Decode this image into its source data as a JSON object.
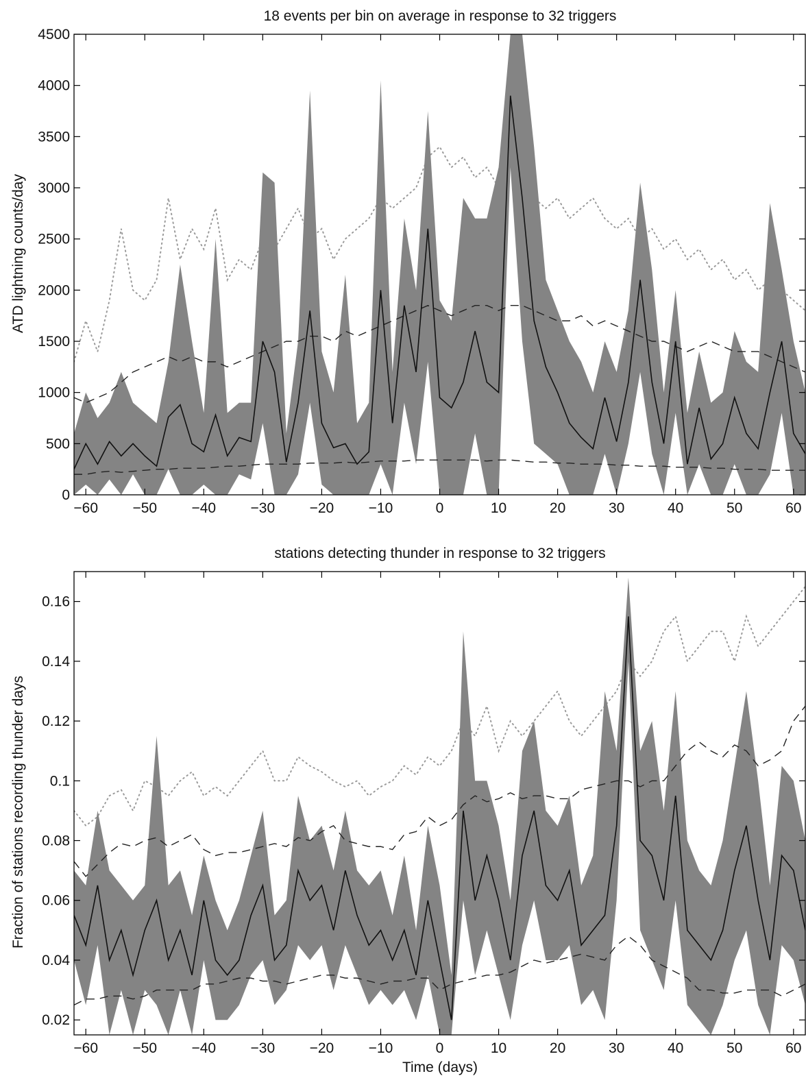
{
  "chart_data": [
    {
      "type": "line",
      "title": "18 events per bin on average in response to 32 triggers",
      "xlabel": "",
      "ylabel": "ATD lightning counts/day",
      "xlim": [
        -62,
        62
      ],
      "ylim": [
        0,
        4500
      ],
      "xticks": [
        -60,
        -50,
        -40,
        -30,
        -20,
        -10,
        0,
        10,
        20,
        30,
        40,
        50,
        60
      ],
      "yticks": [
        0,
        500,
        1000,
        1500,
        2000,
        2500,
        3000,
        3500,
        4000,
        4500
      ],
      "grid": false,
      "x": [
        -62,
        -60,
        -58,
        -56,
        -54,
        -52,
        -50,
        -48,
        -46,
        -44,
        -42,
        -40,
        -38,
        -36,
        -34,
        -32,
        -30,
        -28,
        -26,
        -24,
        -22,
        -20,
        -18,
        -16,
        -14,
        -12,
        -10,
        -8,
        -6,
        -4,
        -2,
        0,
        2,
        4,
        6,
        8,
        10,
        12,
        14,
        16,
        18,
        20,
        22,
        24,
        26,
        28,
        30,
        32,
        34,
        36,
        38,
        40,
        42,
        44,
        46,
        48,
        50,
        52,
        54,
        56,
        58,
        60,
        62
      ],
      "series": [
        {
          "role": "mean",
          "style": "solid",
          "values": [
            250,
            500,
            300,
            520,
            380,
            500,
            380,
            280,
            760,
            880,
            500,
            420,
            780,
            380,
            560,
            520,
            1500,
            1200,
            320,
            900,
            1800,
            700,
            460,
            500,
            300,
            420,
            2000,
            700,
            1850,
            1200,
            2600,
            950,
            850,
            1100,
            1600,
            1100,
            1000,
            3900,
            2900,
            1700,
            1250,
            1000,
            700,
            560,
            450,
            950,
            520,
            1100,
            2100,
            1100,
            500,
            1500,
            300,
            850,
            350,
            500,
            950,
            600,
            450,
            1000,
            1500,
            600,
            400
          ]
        },
        {
          "role": "band_upper",
          "style": "fill",
          "values": [
            600,
            1000,
            750,
            900,
            1200,
            900,
            800,
            700,
            1300,
            2250,
            1500,
            800,
            2500,
            800,
            900,
            900,
            3150,
            3050,
            600,
            1500,
            3950,
            1400,
            1000,
            2150,
            700,
            900,
            4050,
            1200,
            2700,
            2000,
            3750,
            1900,
            1700,
            2900,
            2700,
            2700,
            3200,
            4500,
            4500,
            3400,
            2100,
            1800,
            1500,
            1300,
            1000,
            1500,
            1200,
            1800,
            3050,
            2200,
            1000,
            2000,
            800,
            1400,
            900,
            1000,
            1600,
            1300,
            1200,
            2850,
            2200,
            1500,
            1000
          ]
        },
        {
          "role": "band_lower",
          "style": "fill",
          "values": [
            0,
            100,
            0,
            150,
            0,
            200,
            0,
            0,
            250,
            0,
            0,
            100,
            0,
            0,
            200,
            150,
            700,
            0,
            0,
            200,
            900,
            100,
            0,
            0,
            0,
            0,
            300,
            0,
            900,
            300,
            1300,
            0,
            0,
            0,
            600,
            0,
            0,
            3200,
            1500,
            500,
            400,
            300,
            0,
            0,
            0,
            400,
            0,
            500,
            1200,
            400,
            0,
            800,
            0,
            300,
            0,
            0,
            300,
            0,
            0,
            200,
            800,
            0,
            0
          ]
        },
        {
          "role": "upper_reference",
          "style": "dashed",
          "values": [
            950,
            900,
            950,
            1000,
            1100,
            1200,
            1250,
            1300,
            1350,
            1300,
            1350,
            1300,
            1300,
            1250,
            1300,
            1350,
            1400,
            1450,
            1500,
            1500,
            1550,
            1550,
            1500,
            1600,
            1550,
            1600,
            1650,
            1700,
            1750,
            1800,
            1850,
            1800,
            1750,
            1800,
            1850,
            1850,
            1800,
            1850,
            1850,
            1800,
            1750,
            1700,
            1700,
            1750,
            1650,
            1700,
            1650,
            1600,
            1550,
            1500,
            1500,
            1450,
            1400,
            1450,
            1500,
            1450,
            1400,
            1400,
            1400,
            1350,
            1300,
            1250,
            1200
          ]
        },
        {
          "role": "lower_reference",
          "style": "dashed",
          "values": [
            200,
            200,
            220,
            230,
            220,
            230,
            240,
            250,
            250,
            260,
            260,
            260,
            270,
            280,
            280,
            290,
            300,
            300,
            300,
            300,
            310,
            310,
            310,
            320,
            310,
            320,
            330,
            330,
            330,
            340,
            340,
            340,
            340,
            340,
            340,
            330,
            340,
            340,
            330,
            320,
            320,
            310,
            310,
            300,
            300,
            300,
            290,
            290,
            280,
            280,
            280,
            270,
            270,
            270,
            260,
            260,
            250,
            250,
            250,
            240,
            240,
            240,
            240
          ]
        },
        {
          "role": "dotted_reference",
          "style": "dotted",
          "values": [
            1300,
            1700,
            1400,
            1900,
            2600,
            2000,
            1900,
            2100,
            2900,
            2300,
            2600,
            2400,
            2800,
            2100,
            2300,
            2200,
            2500,
            2400,
            2600,
            2800,
            2500,
            2600,
            2300,
            2500,
            2600,
            2700,
            2900,
            2800,
            2900,
            3000,
            3300,
            3400,
            3200,
            3300,
            3100,
            3200,
            3000,
            3300,
            3100,
            2900,
            2800,
            2900,
            2700,
            2800,
            2900,
            2700,
            2600,
            2700,
            2500,
            2600,
            2400,
            2500,
            2300,
            2400,
            2200,
            2300,
            2100,
            2200,
            2000,
            2100,
            2000,
            1900,
            1800
          ]
        }
      ]
    },
    {
      "type": "line",
      "title": "stations detecting thunder in response to 32 triggers",
      "xlabel": "Time (days)",
      "ylabel": "Fraction of stations recording thunder days",
      "xlim": [
        -62,
        62
      ],
      "ylim": [
        0.015,
        0.17
      ],
      "xticks": [
        -60,
        -50,
        -40,
        -30,
        -20,
        -10,
        0,
        10,
        20,
        30,
        40,
        50,
        60
      ],
      "yticks": [
        0.02,
        0.04,
        0.06,
        0.08,
        0.1,
        0.12,
        0.14,
        0.16
      ],
      "ytick_labels": [
        "0.02",
        "0.04",
        "0.06",
        "0.08",
        "0.1",
        "0.12",
        "0.14",
        "0.16"
      ],
      "grid": false,
      "x": [
        -62,
        -60,
        -58,
        -56,
        -54,
        -52,
        -50,
        -48,
        -46,
        -44,
        -42,
        -40,
        -38,
        -36,
        -34,
        -32,
        -30,
        -28,
        -26,
        -24,
        -22,
        -20,
        -18,
        -16,
        -14,
        -12,
        -10,
        -8,
        -6,
        -4,
        -2,
        0,
        2,
        4,
        6,
        8,
        10,
        12,
        14,
        16,
        18,
        20,
        22,
        24,
        26,
        28,
        30,
        32,
        34,
        36,
        38,
        40,
        42,
        44,
        46,
        48,
        50,
        52,
        54,
        56,
        58,
        60,
        62
      ],
      "series": [
        {
          "role": "mean",
          "style": "solid",
          "values": [
            0.055,
            0.045,
            0.065,
            0.04,
            0.05,
            0.035,
            0.05,
            0.06,
            0.04,
            0.05,
            0.035,
            0.06,
            0.04,
            0.035,
            0.04,
            0.055,
            0.065,
            0.04,
            0.045,
            0.07,
            0.06,
            0.065,
            0.05,
            0.07,
            0.055,
            0.045,
            0.05,
            0.04,
            0.05,
            0.035,
            0.06,
            0.04,
            0.02,
            0.09,
            0.06,
            0.075,
            0.06,
            0.04,
            0.075,
            0.09,
            0.065,
            0.06,
            0.07,
            0.045,
            0.05,
            0.055,
            0.085,
            0.155,
            0.08,
            0.075,
            0.06,
            0.095,
            0.05,
            0.045,
            0.04,
            0.05,
            0.07,
            0.085,
            0.06,
            0.04,
            0.075,
            0.07,
            0.05
          ]
        },
        {
          "role": "band_upper",
          "style": "fill",
          "values": [
            0.07,
            0.065,
            0.09,
            0.07,
            0.065,
            0.06,
            0.065,
            0.115,
            0.065,
            0.07,
            0.055,
            0.075,
            0.06,
            0.05,
            0.06,
            0.075,
            0.09,
            0.055,
            0.06,
            0.095,
            0.08,
            0.085,
            0.07,
            0.09,
            0.07,
            0.065,
            0.07,
            0.055,
            0.075,
            0.05,
            0.085,
            0.065,
            0.035,
            0.15,
            0.1,
            0.1,
            0.085,
            0.06,
            0.11,
            0.12,
            0.09,
            0.085,
            0.095,
            0.065,
            0.075,
            0.13,
            0.11,
            0.168,
            0.11,
            0.12,
            0.09,
            0.13,
            0.08,
            0.07,
            0.065,
            0.08,
            0.105,
            0.13,
            0.1,
            0.065,
            0.105,
            0.1,
            0.08
          ]
        },
        {
          "role": "band_lower",
          "style": "fill",
          "values": [
            0.04,
            0.025,
            0.045,
            0.015,
            0.03,
            0.015,
            0.03,
            0.025,
            0.015,
            0.03,
            0.015,
            0.04,
            0.02,
            0.02,
            0.025,
            0.035,
            0.04,
            0.025,
            0.03,
            0.045,
            0.04,
            0.045,
            0.03,
            0.045,
            0.035,
            0.025,
            0.03,
            0.025,
            0.03,
            0.02,
            0.035,
            0.015,
            0.015,
            0.06,
            0.035,
            0.05,
            0.035,
            0.02,
            0.045,
            0.06,
            0.04,
            0.04,
            0.045,
            0.025,
            0.03,
            0.02,
            0.06,
            0.14,
            0.05,
            0.04,
            0.03,
            0.06,
            0.025,
            0.02,
            0.015,
            0.025,
            0.04,
            0.05,
            0.025,
            0.015,
            0.045,
            0.04,
            0.025
          ]
        },
        {
          "role": "upper_reference",
          "style": "dashed",
          "values": [
            0.073,
            0.068,
            0.072,
            0.076,
            0.079,
            0.078,
            0.08,
            0.081,
            0.078,
            0.08,
            0.082,
            0.077,
            0.075,
            0.076,
            0.076,
            0.077,
            0.078,
            0.079,
            0.078,
            0.081,
            0.08,
            0.083,
            0.085,
            0.08,
            0.079,
            0.078,
            0.078,
            0.077,
            0.082,
            0.083,
            0.088,
            0.085,
            0.087,
            0.092,
            0.095,
            0.093,
            0.094,
            0.096,
            0.094,
            0.095,
            0.095,
            0.094,
            0.094,
            0.097,
            0.098,
            0.099,
            0.1,
            0.1,
            0.098,
            0.1,
            0.1,
            0.105,
            0.11,
            0.113,
            0.11,
            0.108,
            0.112,
            0.11,
            0.105,
            0.107,
            0.11,
            0.12,
            0.125
          ]
        },
        {
          "role": "lower_reference",
          "style": "dashed",
          "values": [
            0.025,
            0.027,
            0.027,
            0.028,
            0.028,
            0.027,
            0.028,
            0.03,
            0.03,
            0.03,
            0.03,
            0.032,
            0.032,
            0.033,
            0.034,
            0.034,
            0.033,
            0.033,
            0.032,
            0.033,
            0.034,
            0.035,
            0.035,
            0.034,
            0.034,
            0.033,
            0.032,
            0.033,
            0.033,
            0.034,
            0.034,
            0.03,
            0.032,
            0.033,
            0.034,
            0.035,
            0.035,
            0.036,
            0.038,
            0.04,
            0.039,
            0.04,
            0.041,
            0.042,
            0.041,
            0.04,
            0.045,
            0.048,
            0.045,
            0.04,
            0.038,
            0.036,
            0.034,
            0.03,
            0.03,
            0.029,
            0.029,
            0.03,
            0.03,
            0.03,
            0.028,
            0.03,
            0.032
          ]
        },
        {
          "role": "dotted_reference",
          "style": "dotted",
          "values": [
            0.09,
            0.085,
            0.088,
            0.095,
            0.097,
            0.09,
            0.1,
            0.098,
            0.095,
            0.1,
            0.103,
            0.095,
            0.098,
            0.095,
            0.1,
            0.105,
            0.11,
            0.1,
            0.1,
            0.108,
            0.105,
            0.103,
            0.1,
            0.098,
            0.1,
            0.095,
            0.098,
            0.1,
            0.105,
            0.102,
            0.108,
            0.105,
            0.11,
            0.12,
            0.115,
            0.125,
            0.11,
            0.12,
            0.115,
            0.12,
            0.125,
            0.13,
            0.12,
            0.115,
            0.12,
            0.125,
            0.13,
            0.14,
            0.135,
            0.14,
            0.15,
            0.155,
            0.14,
            0.145,
            0.15,
            0.15,
            0.14,
            0.155,
            0.145,
            0.15,
            0.155,
            0.16,
            0.165
          ]
        }
      ]
    }
  ]
}
